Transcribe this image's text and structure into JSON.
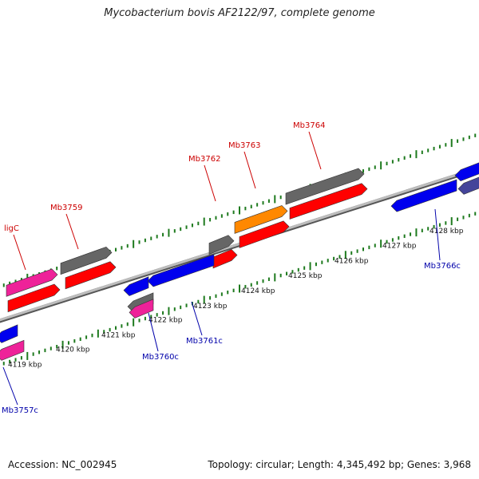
{
  "title": "Mycobacterium bovis AF2122/97, complete genome",
  "accession": "Accession: NC_002945",
  "summary": "Topology: circular; Length: 4,345,492 bp; Genes: 3,968",
  "colors": {
    "backbone": "#8c8c8c",
    "tick": "#1e7a1e",
    "fwd_label": "#cc0000",
    "rev_label": "#0000aa",
    "red": "#ff0000",
    "gray": "#666666",
    "pink": "#ee2299",
    "orange": "#ff8800",
    "blue": "#0000ee",
    "slate": "#44449a"
  },
  "kbp_labels": [
    "4119 kbp",
    "4120 kbp",
    "4121 kbp",
    "4122 kbp",
    "4123 kbp",
    "4124 kbp",
    "4125 kbp",
    "4126 kbp",
    "4127 kbp",
    "4128 kbp"
  ],
  "gene_labels": {
    "fwd": [
      "ligC",
      "Mb3759",
      "Mb3762",
      "Mb3763",
      "Mb3764"
    ],
    "rev": [
      "Mb3757c",
      "Mb3760c",
      "Mb3761c",
      "Mb3766c"
    ]
  }
}
